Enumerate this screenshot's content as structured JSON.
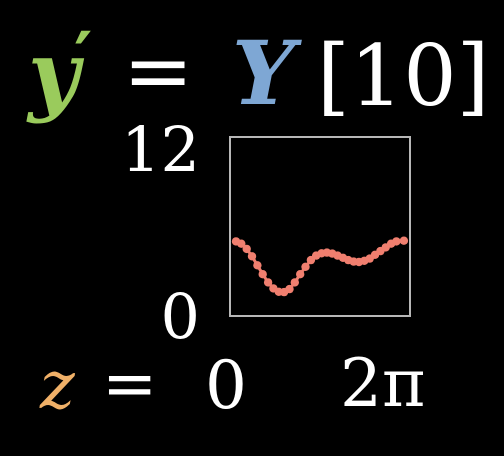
{
  "equation": {
    "lhs": "y",
    "prime": "′",
    "equals": "=",
    "rhs_symbol": "Y",
    "index_text": "[10]"
  },
  "z_label": {
    "symbol": "z",
    "equals": "=",
    "value": "0"
  },
  "colors": {
    "background": "#000000",
    "text": "#ffffff",
    "y_color": "#9acb5c",
    "Y_color": "#7ea7d4",
    "z_color": "#f0b068",
    "line_color": "#f07f6f",
    "box_color": "#b7b7b7"
  },
  "chart_data": {
    "type": "line",
    "title": "",
    "xlabel": "",
    "ylabel": "",
    "xlim_labels": [
      "",
      "2π"
    ],
    "ylim_labels": [
      "0",
      "12"
    ],
    "ylim": [
      0,
      12
    ],
    "xlim": [
      0,
      6.283
    ],
    "series": [
      {
        "values": [
          [
            0.0,
            5.0
          ],
          [
            0.2,
            4.85
          ],
          [
            0.4,
            4.5
          ],
          [
            0.6,
            4.0
          ],
          [
            0.8,
            3.4
          ],
          [
            1.0,
            2.8
          ],
          [
            1.2,
            2.25
          ],
          [
            1.4,
            1.85
          ],
          [
            1.6,
            1.62
          ],
          [
            1.8,
            1.6
          ],
          [
            2.0,
            1.8
          ],
          [
            2.2,
            2.25
          ],
          [
            2.4,
            2.8
          ],
          [
            2.6,
            3.3
          ],
          [
            2.8,
            3.75
          ],
          [
            3.0,
            4.05
          ],
          [
            3.2,
            4.2
          ],
          [
            3.4,
            4.25
          ],
          [
            3.6,
            4.18
          ],
          [
            3.8,
            4.05
          ],
          [
            4.0,
            3.9
          ],
          [
            4.2,
            3.75
          ],
          [
            4.4,
            3.65
          ],
          [
            4.6,
            3.62
          ],
          [
            4.8,
            3.7
          ],
          [
            5.0,
            3.85
          ],
          [
            5.2,
            4.1
          ],
          [
            5.4,
            4.35
          ],
          [
            5.6,
            4.6
          ],
          [
            5.8,
            4.85
          ],
          [
            6.0,
            5.0
          ],
          [
            6.28,
            5.05
          ]
        ]
      }
    ]
  }
}
